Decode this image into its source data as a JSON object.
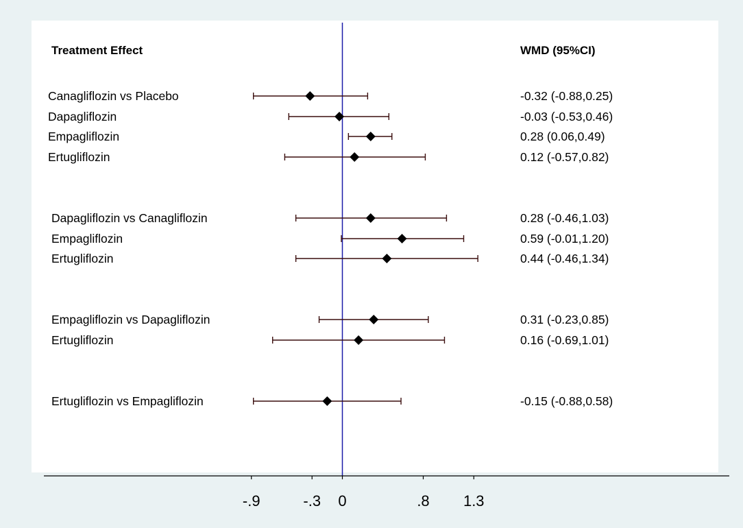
{
  "colors": {
    "outer_background": "#eaf2f3",
    "plot_background": "#ffffff",
    "null_line": "#1a1aa8",
    "ci_line": "#3a0d0d",
    "marker": "#000000",
    "axis": "#000000"
  },
  "chart_data": {
    "type": "forest",
    "header_left": "Treatment Effect",
    "header_right": "WMD (95%CI)",
    "x_axis": {
      "ticks": [
        -0.9,
        -0.3,
        0,
        0.8,
        1.3
      ],
      "tick_labels": [
        "-.9",
        "-.3",
        "0",
        ".8",
        "1.3"
      ]
    },
    "null_value": 0,
    "marker_shape": "diamond",
    "grid": false,
    "rows": [
      {
        "label": "Canagliflozin  vs Placebo",
        "estimate": -0.32,
        "lower": -0.88,
        "upper": 0.25,
        "text": "-0.32 (-0.88,0.25)"
      },
      {
        "label": "Dapagliflozin",
        "estimate": -0.03,
        "lower": -0.53,
        "upper": 0.46,
        "text": "-0.03 (-0.53,0.46)"
      },
      {
        "label": "Empagliflozin",
        "estimate": 0.28,
        "lower": 0.06,
        "upper": 0.49,
        "text": "0.28 (0.06,0.49)"
      },
      {
        "label": "Ertugliflozin",
        "estimate": 0.12,
        "lower": -0.57,
        "upper": 0.82,
        "text": "0.12 (-0.57,0.82)"
      },
      {
        "label": "Dapagliflozin   vs Canagliflozin",
        "estimate": 0.28,
        "lower": -0.46,
        "upper": 1.03,
        "text": "0.28 (-0.46,1.03)"
      },
      {
        "label": "Empagliflozin",
        "estimate": 0.59,
        "lower": -0.01,
        "upper": 1.2,
        "text": "0.59 (-0.01,1.20)"
      },
      {
        "label": "Ertugliflozin",
        "estimate": 0.44,
        "lower": -0.46,
        "upper": 1.34,
        "text": "0.44 (-0.46,1.34)"
      },
      {
        "label": "Empagliflozin vs Dapagliflozin",
        "estimate": 0.31,
        "lower": -0.23,
        "upper": 0.85,
        "text": "0.31 (-0.23,0.85)"
      },
      {
        "label": "Ertugliflozin",
        "estimate": 0.16,
        "lower": -0.69,
        "upper": 1.01,
        "text": "0.16 (-0.69,1.01)"
      },
      {
        "label": "Ertugliflozin  vs Empagliflozin",
        "estimate": -0.15,
        "lower": -0.88,
        "upper": 0.58,
        "text": "-0.15 (-0.88,0.58)"
      }
    ]
  }
}
